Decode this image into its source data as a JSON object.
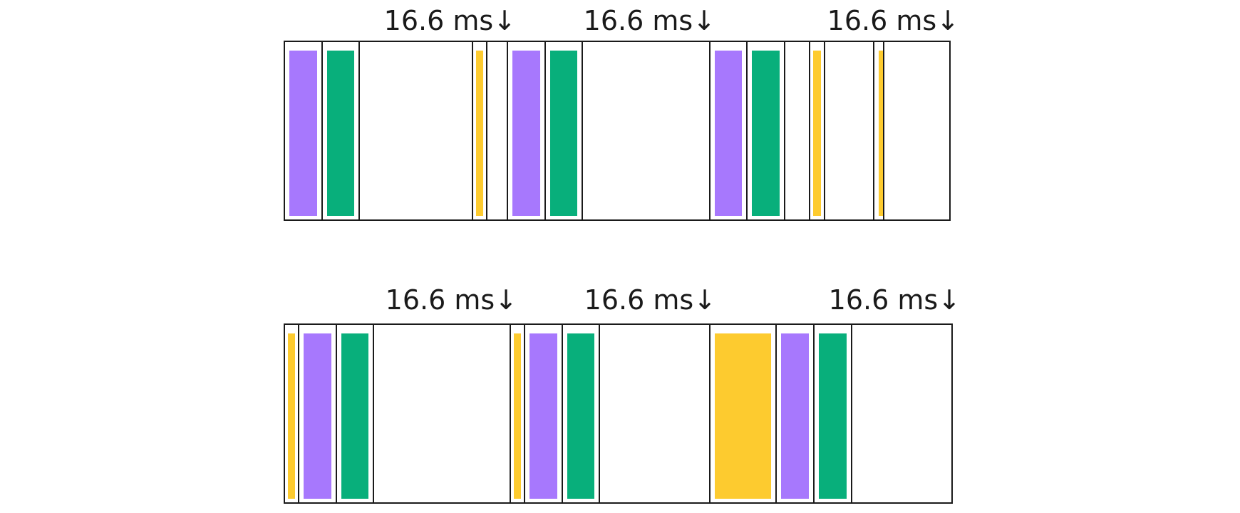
{
  "colors": {
    "purple": "#a778fd",
    "green": "#08af7b",
    "yellow": "#fdcb2f"
  },
  "rows": [
    {
      "name": "row-top",
      "labels": [
        "16.6 ms↓",
        "16.6 ms↓",
        "16.6 ms↓"
      ],
      "blocks": [
        "purple",
        "green",
        "empty",
        "yellow",
        "empty",
        "purple",
        "green",
        "empty",
        "purple",
        "green",
        "empty",
        "yellow",
        "empty",
        "yellow",
        "empty"
      ]
    },
    {
      "name": "row-bottom",
      "labels": [
        "16.6 ms↓",
        "16.6 ms↓",
        "16.6 ms↓"
      ],
      "blocks": [
        "yellow",
        "purple",
        "green",
        "empty",
        "yellow",
        "purple",
        "green",
        "empty",
        "yellow",
        "purple",
        "green",
        "empty"
      ]
    }
  ]
}
